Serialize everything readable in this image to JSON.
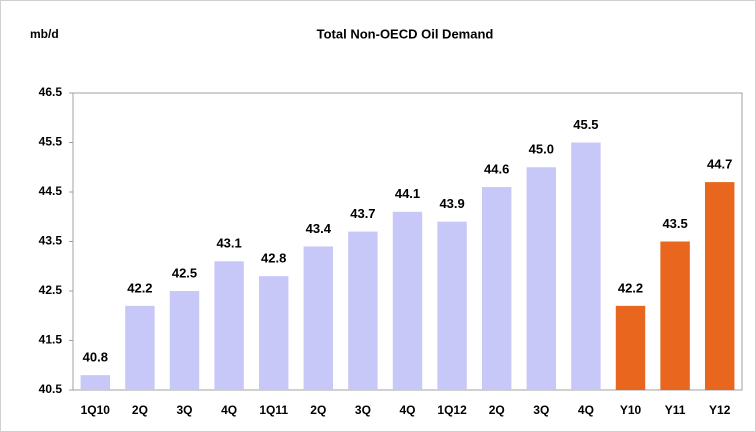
{
  "chart_data": {
    "type": "bar",
    "title": "Total Non-OECD Oil Demand",
    "y_label": "mb/d",
    "categories": [
      "1Q10",
      "2Q",
      "3Q",
      "4Q",
      "1Q11",
      "2Q",
      "3Q",
      "4Q",
      "1Q12",
      "2Q",
      "3Q",
      "4Q",
      "Y10",
      "Y11",
      "Y12"
    ],
    "values": [
      40.8,
      42.2,
      42.5,
      43.1,
      42.8,
      43.4,
      43.7,
      44.1,
      43.9,
      44.6,
      45,
      45.5,
      42.2,
      43.5,
      44.7
    ],
    "value_labels": [
      "40.8",
      "42.2",
      "42.5",
      "43.1",
      "42.8",
      "43.4",
      "43.7",
      "44.1",
      "43.9",
      "44.6",
      "45.0",
      "45.5",
      "42.2",
      "43.5",
      "44.7"
    ],
    "colors": [
      "#c8c8f8",
      "#c8c8f8",
      "#c8c8f8",
      "#c8c8f8",
      "#c8c8f8",
      "#c8c8f8",
      "#c8c8f8",
      "#c8c8f8",
      "#c8c8f8",
      "#c8c8f8",
      "#c8c8f8",
      "#c8c8f8",
      "#e8661e",
      "#e8661e",
      "#e8661e"
    ],
    "ylim": [
      40.5,
      46.5
    ],
    "yticks": [
      40.5,
      41.5,
      42.5,
      43.5,
      44.5,
      45.5,
      46.5
    ],
    "grid": false
  }
}
